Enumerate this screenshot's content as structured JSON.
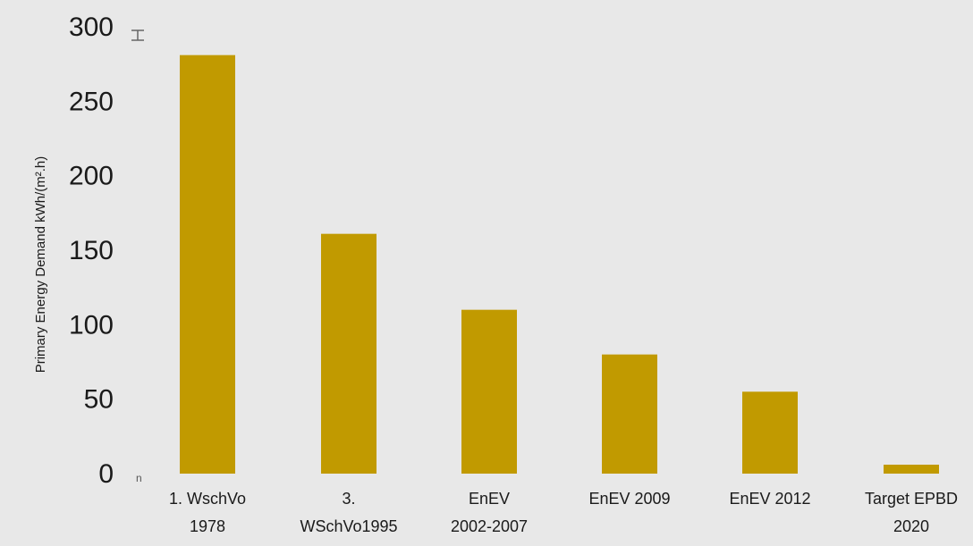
{
  "chart_data": {
    "type": "bar",
    "title": "",
    "xlabel": "",
    "ylabel": "Primary Energy Demand kWh/(m².h)",
    "ylim": [
      0,
      300
    ],
    "yticks": [
      "0",
      "50",
      "100",
      "150",
      "200",
      "250",
      "300"
    ],
    "categories": [
      [
        "1. WschVo",
        "1978"
      ],
      [
        "3.",
        "WSchVo1995"
      ],
      [
        "EnEV",
        "2002-2007"
      ],
      [
        "EnEV 2009"
      ],
      [
        "EnEV 2012"
      ],
      [
        "Target EPBD",
        "2020"
      ]
    ],
    "values": [
      281,
      161,
      110,
      80,
      55,
      6
    ],
    "bar_color": "#c19a00",
    "background_color": "#e8e8e8",
    "grid": false,
    "legend": "none"
  }
}
